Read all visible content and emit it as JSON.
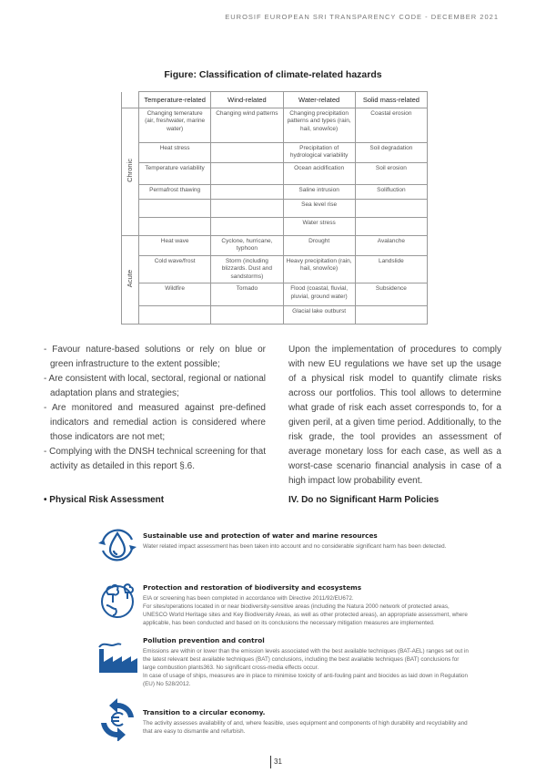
{
  "header": "EUROSIF EUROPEAN SRI TRANSPARENCY CODE - DECEMBER 2021",
  "figure_title": "Figure: Classification of climate-related hazards",
  "table": {
    "columns": [
      "Temperature-related",
      "Wind-related",
      "Water-related",
      "Solid mass-related"
    ],
    "groups": [
      {
        "label": "Chronic",
        "rows": [
          [
            "Changing temerature (air, freshwater, marine water)",
            "Changing wind patterns",
            "Changing precipitation patterns and types (rain, hail, snow/ice)",
            "Coastal erosion"
          ],
          [
            "Heat stress",
            "",
            "Precipitation of hydrological variability",
            "Soil degradation"
          ],
          [
            "Temperature variability",
            "",
            "Ocean acidification",
            "Soil erosion"
          ],
          [
            "Permafrost thawing",
            "",
            "Saline intrusion",
            "Solifluction"
          ],
          [
            "",
            "",
            "Sea level rise",
            ""
          ],
          [
            "",
            "",
            "Water stress",
            ""
          ]
        ]
      },
      {
        "label": "Acute",
        "rows": [
          [
            "Heat wave",
            "Cyclone, hurricane, typhoon",
            "Drought",
            "Avalanche"
          ],
          [
            "Cold wave/frost",
            "Storm (including blizzards. Dust and sandstorms)",
            "Heavy precipitation (rain, hail, snow/ice)",
            "Landslide"
          ],
          [
            "Wildfire",
            "Tornado",
            "Flood (coastal, fluvial, pluvial, ground water)",
            "Subsidence"
          ],
          [
            "",
            "",
            "Glacial lake outburst",
            ""
          ]
        ]
      }
    ]
  },
  "left_col": {
    "items": [
      "- Favour nature-based solutions or rely on blue or green infrastructure to the extent possible;",
      "- Are consistent with local, sectoral, regional or national adaptation plans and strategies;",
      "- Are monitored and measured against pre-defined indicators and remedial action is considered where those indicators are not met;",
      "- Complying with the DNSH technical screening for that activity as detailed in this report §.6."
    ],
    "heading": "• Physical Risk Assessment"
  },
  "right_col": {
    "text": "Upon the implementation of procedures to comply with new EU regulations we have set up the usage of a physical risk model to quantify climate risks across our portfolios. This tool allows to determine what grade of risk each asset corresponds to, for a given peril, at a given time period. Additionally, to the risk grade, the tool provides an assessment of average monetary loss for each case, as well as a worst-case scenario financial analysis in case of a high impact low probability event.",
    "heading": "IV. Do no Significant Harm Policies"
  },
  "dnsh": [
    {
      "icon": "water-drop-cycle-icon",
      "title": "Sustainable use and protection of water and marine resources",
      "body": [
        "Water related impact assessment has been taken into account and no considerable significant harm has been detected."
      ]
    },
    {
      "icon": "globe-trees-icon",
      "title": "Protection and restoration of biodiversity and ecosystems",
      "body": [
        "EIA or screening has been completed in accordance with Directive 2011/92/EU672.",
        "For sites/operations located in or near biodiversity-sensitive areas (including the Natura 2000 network of protected areas, UNESCO World Heritage sites and Key Biodiversity Areas, as well as other protected areas), an appropriate assessment, where applicable, has been conducted and based on its conclusions the necessary mitigation measures are implemented."
      ]
    },
    {
      "icon": "factory-icon",
      "title": "Pollution prevention and control",
      "body": [
        "Emissions are within or lower than the emission levels associated with the best available techniques (BAT-AEL) ranges set out in the latest relevant best available techniques (BAT) conclusions, including the best available techniques (BAT) conclusions for large combustion plants363. No significant cross-media effects occur.",
        "In case of usage of ships, measures are in place to minimise toxicity of anti-fouling paint and biocides as laid down in Regulation (EU) No 528/2012."
      ]
    },
    {
      "icon": "euro-recycle-icon",
      "title": "Transition to a circular economy.",
      "body": [
        "The activity assesses availability of and, where feasible, uses equipment and components of high durability and recyclability and that are easy to dismantle and refurbish."
      ]
    }
  ],
  "page_number": "31",
  "colors": {
    "icon_blue": "#1f5a9e"
  }
}
